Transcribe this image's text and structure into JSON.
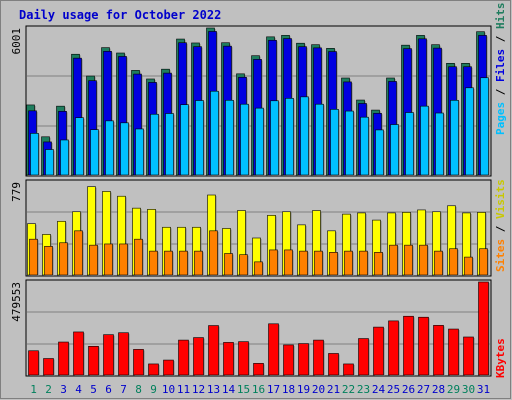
{
  "title": "Daily usage for October 2022",
  "chart_data": [
    {
      "type": "bar",
      "panel": "hits-files-pages",
      "categories": [
        "1",
        "2",
        "3",
        "4",
        "5",
        "6",
        "7",
        "8",
        "9",
        "10",
        "11",
        "12",
        "13",
        "14",
        "15",
        "16",
        "17",
        "18",
        "19",
        "20",
        "21",
        "22",
        "23",
        "24",
        "25",
        "26",
        "27",
        "28",
        "29",
        "30",
        "31"
      ],
      "weekend_days": [
        "1",
        "2",
        "8",
        "9",
        "15",
        "16",
        "22",
        "23",
        "29",
        "30"
      ],
      "ymax_label": "6001",
      "ylim": [
        0,
        6001
      ],
      "side_label": {
        "pages": "Pages",
        "files": "Files",
        "hits": "Hits",
        "sep": " / "
      },
      "series": [
        {
          "name": "Hits",
          "color": "#1f7d5e",
          "values": [
            2860,
            1560,
            2810,
            4930,
            4040,
            5200,
            4980,
            4270,
            3920,
            4320,
            5550,
            5390,
            6001,
            5400,
            4130,
            4870,
            5640,
            5700,
            5380,
            5320,
            5170,
            3960,
            3060,
            2650,
            3960,
            5300,
            5700,
            5320,
            4560,
            4560,
            5850
          ]
        },
        {
          "name": "Files",
          "color": "#0000e0",
          "values": [
            2620,
            1350,
            2600,
            4770,
            3850,
            5050,
            4840,
            4120,
            3780,
            4160,
            5400,
            5240,
            5860,
            5260,
            3990,
            4720,
            5500,
            5570,
            5240,
            5190,
            5040,
            3800,
            2920,
            2520,
            3820,
            5160,
            5560,
            5180,
            4420,
            4420,
            5700
          ]
        },
        {
          "name": "Pages",
          "color": "#00c0ff",
          "values": [
            1700,
            1040,
            1430,
            2340,
            1850,
            2210,
            2130,
            1880,
            2480,
            2510,
            2870,
            3040,
            3420,
            3050,
            2890,
            2730,
            3030,
            3130,
            3190,
            2890,
            2680,
            2610,
            2360,
            1840,
            2060,
            2550,
            2810,
            2530,
            3050,
            3560,
            3970
          ]
        }
      ]
    },
    {
      "type": "bar",
      "panel": "visits-sites",
      "categories": [
        "1",
        "2",
        "3",
        "4",
        "5",
        "6",
        "7",
        "8",
        "9",
        "10",
        "11",
        "12",
        "13",
        "14",
        "15",
        "16",
        "17",
        "18",
        "19",
        "20",
        "21",
        "22",
        "23",
        "24",
        "25",
        "26",
        "27",
        "28",
        "29",
        "30",
        "31"
      ],
      "ymax_label": "779",
      "ylim": [
        0,
        779
      ],
      "side_label": {
        "sites": "Sites",
        "visits": "Visits",
        "sep": " / "
      },
      "series": [
        {
          "name": "Visits",
          "color": "#ffff00",
          "values": [
            430,
            340,
            450,
            530,
            740,
            700,
            660,
            560,
            550,
            400,
            400,
            400,
            670,
            390,
            540,
            310,
            500,
            530,
            420,
            540,
            370,
            510,
            520,
            460,
            520,
            525,
            545,
            530,
            580,
            520,
            525
          ]
        },
        {
          "name": "Sites",
          "color": "#ff8000",
          "values": [
            300,
            240,
            270,
            370,
            250,
            260,
            260,
            300,
            200,
            200,
            200,
            200,
            370,
            180,
            170,
            110,
            210,
            210,
            200,
            200,
            190,
            200,
            200,
            190,
            250,
            250,
            250,
            200,
            220,
            150,
            220
          ]
        }
      ]
    },
    {
      "type": "bar",
      "panel": "kbytes",
      "categories": [
        "1",
        "2",
        "3",
        "4",
        "5",
        "6",
        "7",
        "8",
        "9",
        "10",
        "11",
        "12",
        "13",
        "14",
        "15",
        "16",
        "17",
        "18",
        "19",
        "20",
        "21",
        "22",
        "23",
        "24",
        "25",
        "26",
        "27",
        "28",
        "29",
        "30",
        "31"
      ],
      "ymax_label": "479553",
      "ylim": [
        0,
        479553
      ],
      "side_label": {
        "kbytes": "KBytes"
      },
      "series": [
        {
          "name": "KBytes",
          "color": "#ff0000",
          "values": [
            125000,
            85000,
            170000,
            222000,
            148000,
            208000,
            218000,
            132000,
            57000,
            77000,
            180000,
            193000,
            255000,
            168000,
            172000,
            60000,
            264000,
            155000,
            162000,
            180000,
            111000,
            57000,
            188000,
            247000,
            279000,
            303000,
            298000,
            256000,
            237000,
            196000,
            479553
          ]
        }
      ]
    }
  ]
}
